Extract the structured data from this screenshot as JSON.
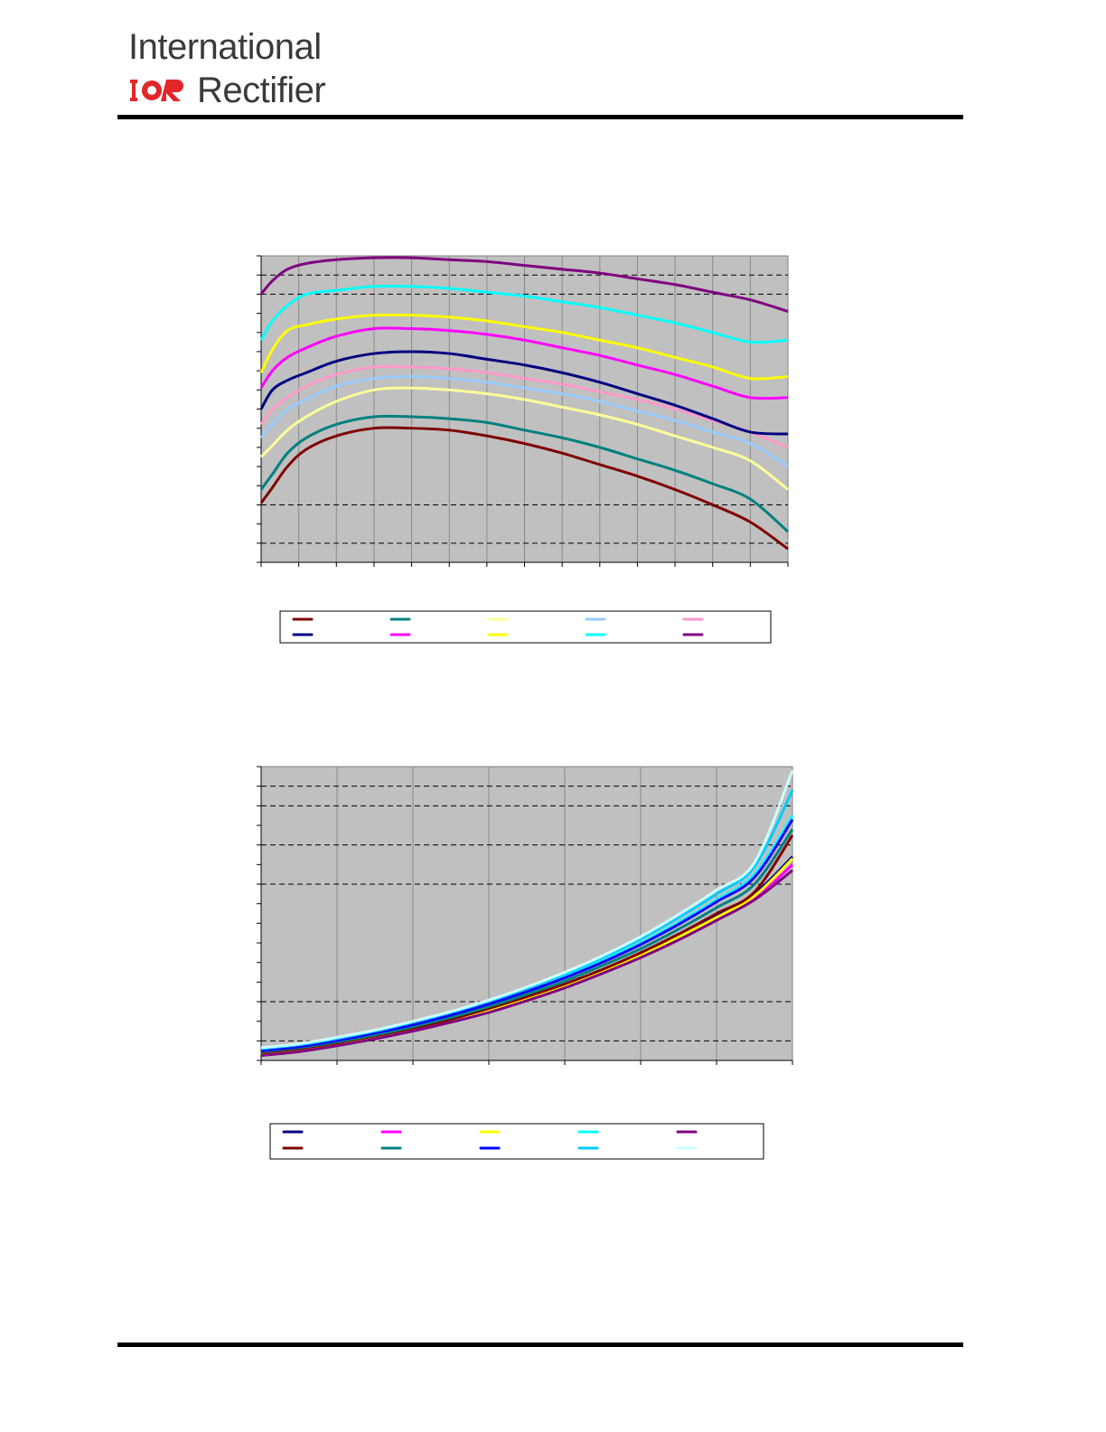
{
  "header": {
    "logo_line1": "International",
    "logo_line2": "Rectifier",
    "logo_mark_text": "IOR"
  },
  "colors": {
    "plot_bg": "#c0c0c0",
    "rule": "#000000",
    "logo_red": "#e3262a"
  },
  "chart_data": [
    {
      "type": "line",
      "xlim": [
        0,
        14
      ],
      "ylim": [
        0,
        16
      ],
      "grid": {
        "x": "solid",
        "y": "dashed",
        "y_dashed_ticks": [
          1,
          3,
          14,
          15
        ]
      },
      "legend": "bottom",
      "series": [
        {
          "color": "#7f0000",
          "x": [
            0,
            0.3,
            0.7,
            1.2,
            2,
            3,
            4,
            5,
            6,
            7,
            8,
            9,
            10,
            11,
            12,
            13,
            14
          ],
          "y": [
            3.1,
            3.9,
            5.0,
            5.9,
            6.6,
            7.0,
            7.0,
            6.9,
            6.6,
            6.2,
            5.7,
            5.1,
            4.5,
            3.8,
            3.0,
            2.1,
            0.7
          ]
        },
        {
          "color": "#008080",
          "x": [
            0,
            0.3,
            0.7,
            1.2,
            2,
            3,
            4,
            5,
            6,
            7,
            8,
            9,
            10,
            11,
            12,
            13,
            14
          ],
          "y": [
            3.8,
            4.6,
            5.7,
            6.5,
            7.2,
            7.6,
            7.6,
            7.5,
            7.3,
            6.9,
            6.5,
            6.0,
            5.4,
            4.8,
            4.1,
            3.3,
            1.6
          ]
        },
        {
          "color": "#ffff99",
          "x": [
            0,
            0.3,
            0.7,
            1.2,
            2,
            3,
            4,
            5,
            6,
            7,
            8,
            9,
            10,
            11,
            12,
            13,
            14
          ],
          "y": [
            5.5,
            6.1,
            6.9,
            7.6,
            8.4,
            9.0,
            9.1,
            9.0,
            8.8,
            8.5,
            8.1,
            7.7,
            7.2,
            6.6,
            6.0,
            5.3,
            3.8
          ]
        },
        {
          "color": "#99ccff",
          "x": [
            0,
            0.3,
            0.7,
            1.2,
            2,
            3,
            4,
            5,
            6,
            7,
            8,
            9,
            10,
            11,
            12,
            13,
            14
          ],
          "y": [
            6.5,
            7.2,
            8.0,
            8.5,
            9.2,
            9.6,
            9.7,
            9.6,
            9.4,
            9.1,
            8.8,
            8.4,
            7.9,
            7.4,
            6.8,
            6.2,
            5.0
          ]
        },
        {
          "color": "#ff99cc",
          "x": [
            0,
            0.3,
            0.7,
            1.2,
            2,
            3,
            4,
            5,
            6,
            7,
            8,
            9,
            10,
            11,
            12,
            13,
            14
          ],
          "y": [
            7.2,
            8.0,
            8.6,
            9.2,
            9.8,
            10.2,
            10.2,
            10.1,
            9.9,
            9.6,
            9.3,
            8.9,
            8.5,
            8.0,
            7.4,
            6.8,
            6.0
          ]
        },
        {
          "color": "#000080",
          "x": [
            0,
            0.3,
            0.7,
            1.2,
            2,
            3,
            4,
            5,
            6,
            7,
            8,
            9,
            10,
            11,
            12,
            13,
            14
          ],
          "y": [
            8.0,
            9.0,
            9.5,
            9.9,
            10.5,
            10.9,
            11.0,
            10.9,
            10.6,
            10.3,
            9.9,
            9.4,
            8.8,
            8.2,
            7.5,
            6.8,
            6.7
          ]
        },
        {
          "color": "#ff00ff",
          "x": [
            0,
            0.3,
            0.7,
            1.2,
            2,
            3,
            4,
            5,
            6,
            7,
            8,
            9,
            10,
            11,
            12,
            13,
            14
          ],
          "y": [
            9.1,
            10.0,
            10.7,
            11.2,
            11.8,
            12.2,
            12.2,
            12.1,
            11.9,
            11.6,
            11.2,
            10.8,
            10.3,
            9.8,
            9.2,
            8.6,
            8.6
          ]
        },
        {
          "color": "#ffff00",
          "x": [
            0,
            0.3,
            0.7,
            1.2,
            2,
            3,
            4,
            5,
            6,
            7,
            8,
            9,
            10,
            11,
            12,
            13,
            14
          ],
          "y": [
            9.9,
            11.1,
            12.1,
            12.4,
            12.7,
            12.9,
            12.9,
            12.8,
            12.6,
            12.3,
            12.0,
            11.6,
            11.2,
            10.7,
            10.2,
            9.6,
            9.7
          ]
        },
        {
          "color": "#00ffff",
          "x": [
            0,
            0.3,
            0.7,
            1.2,
            2,
            3,
            4,
            5,
            6,
            7,
            8,
            9,
            10,
            11,
            12,
            13,
            14
          ],
          "y": [
            11.6,
            12.6,
            13.4,
            14.0,
            14.2,
            14.4,
            14.4,
            14.3,
            14.1,
            13.9,
            13.6,
            13.3,
            12.9,
            12.5,
            12.0,
            11.5,
            11.6
          ]
        },
        {
          "color": "#800080",
          "x": [
            0,
            0.3,
            0.7,
            1.2,
            2,
            3,
            4,
            5,
            6,
            7,
            8,
            9,
            10,
            11,
            12,
            13,
            14
          ],
          "y": [
            14.0,
            14.7,
            15.3,
            15.6,
            15.8,
            15.9,
            15.9,
            15.8,
            15.7,
            15.5,
            15.3,
            15.1,
            14.8,
            14.5,
            14.1,
            13.7,
            13.1
          ]
        }
      ]
    },
    {
      "type": "line",
      "xlim": [
        0,
        7
      ],
      "ylim": [
        0,
        15
      ],
      "grid": {
        "x": "solid",
        "y": "dashed",
        "y_dashed_ticks": [
          1,
          3,
          9,
          11,
          13,
          14
        ]
      },
      "legend": "bottom",
      "series": [
        {
          "color": "#000080",
          "x": [
            0,
            0.5,
            1,
            1.5,
            2,
            2.5,
            3,
            3.5,
            4,
            4.5,
            5,
            5.5,
            6,
            6.5,
            7
          ],
          "y": [
            0.35,
            0.55,
            0.85,
            1.2,
            1.6,
            2.05,
            2.6,
            3.2,
            3.85,
            4.6,
            5.45,
            6.4,
            7.4,
            8.5,
            10.4
          ]
        },
        {
          "color": "#ff00ff",
          "x": [
            0,
            0.5,
            1,
            1.5,
            2,
            2.5,
            3,
            3.5,
            4,
            4.5,
            5,
            5.5,
            6,
            6.5,
            7
          ],
          "y": [
            0.3,
            0.5,
            0.8,
            1.15,
            1.55,
            2.0,
            2.5,
            3.1,
            3.75,
            4.5,
            5.3,
            6.2,
            7.2,
            8.25,
            10.0
          ]
        },
        {
          "color": "#ffff00",
          "x": [
            0,
            0.5,
            1,
            1.5,
            2,
            2.5,
            3,
            3.5,
            4,
            4.5,
            5,
            5.5,
            6,
            6.5,
            7
          ],
          "y": [
            0.32,
            0.52,
            0.82,
            1.18,
            1.58,
            2.03,
            2.55,
            3.15,
            3.8,
            4.55,
            5.35,
            6.3,
            7.3,
            8.4,
            10.3
          ]
        },
        {
          "color": "#00ffff",
          "x": [
            0,
            0.5,
            1,
            1.5,
            2,
            2.5,
            3,
            3.5,
            4,
            4.5,
            5,
            5.5,
            6,
            6.5,
            7
          ],
          "y": [
            0.55,
            0.75,
            1.08,
            1.45,
            1.9,
            2.4,
            2.95,
            3.6,
            4.3,
            5.1,
            6.0,
            7.05,
            8.2,
            9.5,
            12.5
          ]
        },
        {
          "color": "#800080",
          "x": [
            0,
            0.5,
            1,
            1.5,
            2,
            2.5,
            3,
            3.5,
            4,
            4.5,
            5,
            5.5,
            6,
            6.5,
            7
          ],
          "y": [
            0.25,
            0.45,
            0.75,
            1.1,
            1.5,
            1.95,
            2.45,
            3.05,
            3.7,
            4.45,
            5.25,
            6.15,
            7.15,
            8.2,
            9.7
          ]
        },
        {
          "color": "#7f0000",
          "x": [
            0,
            0.5,
            1,
            1.5,
            2,
            2.5,
            3,
            3.5,
            4,
            4.5,
            5,
            5.5,
            6,
            6.5,
            7
          ],
          "y": [
            0.4,
            0.6,
            0.9,
            1.25,
            1.65,
            2.1,
            2.65,
            3.25,
            3.9,
            4.65,
            5.5,
            6.45,
            7.5,
            8.6,
            11.5
          ]
        },
        {
          "color": "#008080",
          "x": [
            0,
            0.5,
            1,
            1.5,
            2,
            2.5,
            3,
            3.5,
            4,
            4.5,
            5,
            5.5,
            6,
            6.5,
            7
          ],
          "y": [
            0.45,
            0.65,
            0.95,
            1.3,
            1.72,
            2.2,
            2.75,
            3.38,
            4.05,
            4.85,
            5.7,
            6.7,
            7.8,
            9.0,
            11.8
          ]
        },
        {
          "color": "#0000ff",
          "x": [
            0,
            0.5,
            1,
            1.5,
            2,
            2.5,
            3,
            3.5,
            4,
            4.5,
            5,
            5.5,
            6,
            6.5,
            7
          ],
          "y": [
            0.5,
            0.7,
            1.02,
            1.4,
            1.82,
            2.32,
            2.88,
            3.52,
            4.22,
            5.02,
            5.92,
            6.95,
            8.1,
            9.35,
            12.3
          ]
        },
        {
          "color": "#00ccff",
          "x": [
            0,
            0.5,
            1,
            1.5,
            2,
            2.5,
            3,
            3.5,
            4,
            4.5,
            5,
            5.5,
            6,
            6.5,
            7
          ],
          "y": [
            0.6,
            0.8,
            1.12,
            1.5,
            1.95,
            2.45,
            3.02,
            3.68,
            4.42,
            5.25,
            6.2,
            7.3,
            8.5,
            9.9,
            13.8
          ]
        },
        {
          "color": "#ccffff",
          "x": [
            0,
            0.5,
            1,
            1.5,
            2,
            2.5,
            3,
            3.5,
            4,
            4.5,
            5,
            5.5,
            6,
            6.5,
            7
          ],
          "y": [
            0.65,
            0.85,
            1.18,
            1.55,
            2.0,
            2.5,
            3.08,
            3.75,
            4.5,
            5.35,
            6.32,
            7.45,
            8.7,
            10.1,
            14.8
          ]
        }
      ]
    }
  ]
}
